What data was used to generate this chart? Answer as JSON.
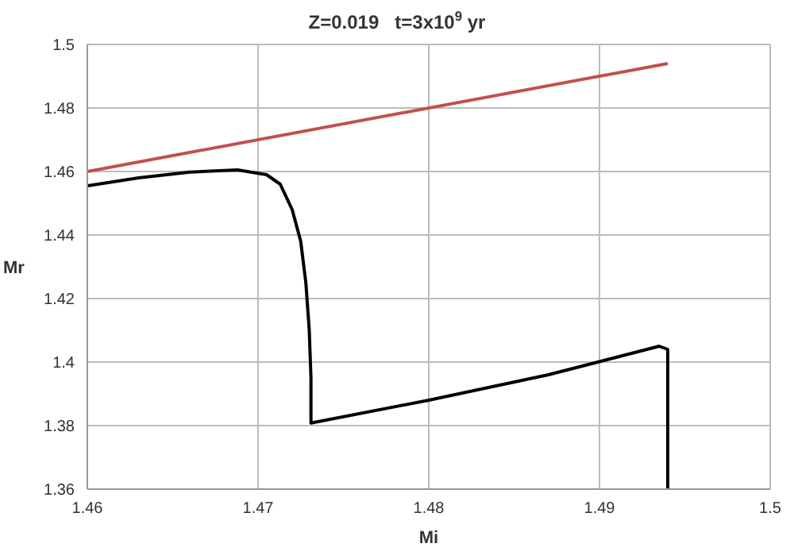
{
  "chart_data": {
    "type": "line",
    "title": "Z=0.019   t=3x10$^{9}$ yr",
    "xlabel": "Mi",
    "ylabel": "Mr",
    "series": [
      {
        "color": "#c0504d",
        "x": [
          1.46,
          1.494
        ],
        "values": [
          1.46,
          1.494
        ]
      },
      {
        "color": "#000000",
        "x": [
          1.46,
          1.463,
          1.466,
          1.4688,
          1.4705,
          1.4713,
          1.472,
          1.4725,
          1.4728,
          1.473,
          1.4731,
          1.4731,
          1.48,
          1.487,
          1.4935,
          1.494,
          1.494
        ],
        "values": [
          1.4555,
          1.458,
          1.4598,
          1.4605,
          1.459,
          1.456,
          1.448,
          1.438,
          1.425,
          1.41,
          1.395,
          1.3808,
          1.388,
          1.396,
          1.405,
          1.404,
          1.36
        ]
      }
    ],
    "xlim": [
      1.46,
      1.5
    ],
    "xticks": [
      1.46,
      1.47,
      1.48,
      1.49,
      1.5
    ],
    "ylim": [
      1.36,
      1.5
    ],
    "yticks": [
      1.36,
      1.38,
      1.4,
      1.42,
      1.44,
      1.46,
      1.48,
      1.5
    ],
    "grid": true,
    "legend": false,
    "marker": "none",
    "line_style": "solid"
  }
}
